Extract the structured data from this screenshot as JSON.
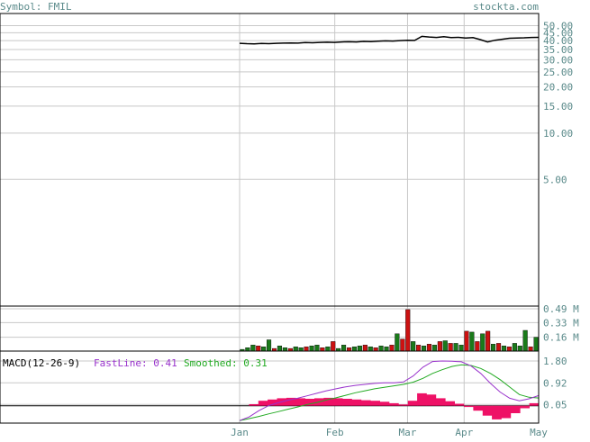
{
  "header": {
    "symbol_text": "Symbol: FMIL",
    "site_text": "stockta.com"
  },
  "colors": {
    "label": "#5a8a8a",
    "grid": "#c8c8c8",
    "frame": "#000000",
    "price": "#000000",
    "volume_up": "#1a7a1a",
    "volume_down": "#cc1111",
    "macd_fast": "#9933cc",
    "macd_smoothed": "#22aa22",
    "macd_histogram": "#ee1166"
  },
  "macd_legend": {
    "label": "MACD(12-26-9)",
    "fast_text": "FastLine: 0.41",
    "smoothed_text": "Smoothed: 0.31"
  },
  "x_axis": {
    "months": [
      {
        "label": "Jan",
        "t": 0.0
      },
      {
        "label": "Feb",
        "t": 0.3183
      },
      {
        "label": "Mar",
        "t": 0.5616
      },
      {
        "label": "Apr",
        "t": 0.7508
      },
      {
        "label": "May",
        "t": 1.0
      }
    ]
  },
  "chart_data": [
    {
      "type": "line",
      "name": "price",
      "y_scale": "log",
      "y_ticks": [
        "50.00",
        "45.00",
        "40.00",
        "35.00",
        "30.00",
        "25.00",
        "20.00",
        "15.00",
        "10.00",
        "5.00"
      ],
      "y_tick_values": [
        50,
        45,
        40,
        35,
        30,
        25,
        20,
        15,
        10,
        5
      ],
      "ylim": [
        0.75,
        60
      ],
      "values": [
        38.4,
        38.2,
        38.1,
        38.3,
        38.2,
        38.4,
        38.5,
        38.6,
        38.5,
        38.8,
        38.7,
        38.9,
        39.0,
        38.9,
        39.2,
        39.3,
        39.2,
        39.5,
        39.4,
        39.6,
        39.8,
        39.7,
        40.0,
        40.2,
        40.1,
        42.6,
        42.2,
        41.9,
        42.4,
        41.8,
        42.0,
        41.5,
        41.8,
        40.6,
        39.2,
        40.2,
        40.8,
        41.4,
        41.6,
        41.7,
        41.9,
        42.0
      ]
    },
    {
      "type": "bar",
      "name": "volume",
      "y_ticks": [
        "0.49 M",
        "0.33 M",
        "0.16 M"
      ],
      "y_tick_values": [
        0.49,
        0.33,
        0.16
      ],
      "ylim": [
        0,
        0.5
      ],
      "values": [
        0.02,
        0.04,
        0.07,
        0.06,
        0.05,
        0.13,
        0.03,
        0.06,
        0.04,
        0.03,
        0.05,
        0.04,
        0.05,
        0.06,
        0.07,
        0.04,
        0.05,
        0.11,
        0.03,
        0.07,
        0.04,
        0.05,
        0.06,
        0.07,
        0.05,
        0.04,
        0.06,
        0.05,
        0.07,
        0.2,
        0.14,
        0.48,
        0.11,
        0.07,
        0.06,
        0.08,
        0.07,
        0.11,
        0.12,
        0.09,
        0.09,
        0.07,
        0.23,
        0.22,
        0.11,
        0.2,
        0.23,
        0.08,
        0.09,
        0.06,
        0.05,
        0.09,
        0.06,
        0.24,
        0.05,
        0.16
      ],
      "up": [
        true,
        true,
        true,
        false,
        true,
        true,
        false,
        true,
        true,
        false,
        true,
        true,
        false,
        true,
        true,
        false,
        true,
        false,
        true,
        true,
        false,
        true,
        true,
        false,
        true,
        false,
        true,
        true,
        false,
        true,
        false,
        false,
        true,
        false,
        true,
        false,
        true,
        false,
        true,
        false,
        true,
        true,
        false,
        true,
        false,
        true,
        false,
        true,
        false,
        true,
        false,
        true,
        true,
        true,
        false,
        true
      ]
    },
    {
      "type": "line",
      "name": "macd",
      "y_ticks": [
        "1.80",
        "0.92",
        "0.05"
      ],
      "y_tick_values": [
        1.8,
        0.92,
        0.05
      ],
      "ylim": [
        -0.7,
        2.2
      ],
      "fast": [
        -0.6,
        -0.45,
        -0.2,
        0.0,
        0.12,
        0.22,
        0.3,
        0.4,
        0.5,
        0.6,
        0.68,
        0.76,
        0.82,
        0.86,
        0.9,
        0.92,
        0.92,
        0.96,
        1.2,
        1.55,
        1.78,
        1.8,
        1.79,
        1.77,
        1.6,
        1.3,
        0.9,
        0.55,
        0.3,
        0.2,
        0.28,
        0.41
      ],
      "smoothed": [
        -0.6,
        -0.52,
        -0.43,
        -0.33,
        -0.24,
        -0.14,
        -0.05,
        0.05,
        0.13,
        0.23,
        0.32,
        0.42,
        0.52,
        0.6,
        0.68,
        0.74,
        0.8,
        0.86,
        0.95,
        1.1,
        1.3,
        1.45,
        1.58,
        1.65,
        1.62,
        1.5,
        1.3,
        1.05,
        0.75,
        0.45,
        0.34,
        0.31
      ],
      "histogram": [
        0.0,
        0.06,
        0.2,
        0.25,
        0.3,
        0.32,
        0.3,
        0.28,
        0.3,
        0.32,
        0.3,
        0.28,
        0.25,
        0.22,
        0.2,
        0.16,
        0.1,
        0.05,
        0.2,
        0.5,
        0.45,
        0.3,
        0.18,
        0.08,
        -0.05,
        -0.2,
        -0.4,
        -0.55,
        -0.5,
        -0.3,
        -0.1,
        0.1
      ]
    }
  ]
}
